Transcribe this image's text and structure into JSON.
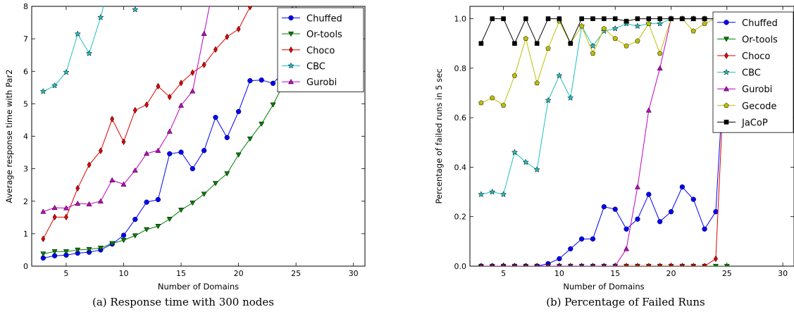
{
  "chart_data": [
    {
      "type": "line",
      "caption": "(a) Response time with 300 nodes",
      "xlabel": "Number of Domains",
      "ylabel": "Average response time with Par2",
      "xlim": [
        2,
        31
      ],
      "ylim": [
        0,
        8
      ],
      "xticks": [
        5,
        10,
        15,
        20,
        25,
        30
      ],
      "yticks": [
        0,
        1,
        2,
        3,
        4,
        5,
        6,
        7,
        8
      ],
      "grid": false,
      "legend": "top-right",
      "series": [
        {
          "name": "Chuffed",
          "color": "#0000ff",
          "marker": "circle",
          "x": [
            3,
            4,
            5,
            6,
            7,
            8,
            9,
            10,
            11,
            12,
            13,
            14,
            15,
            16,
            17,
            18,
            19,
            20,
            21,
            22,
            23,
            24,
            25
          ],
          "y": [
            0.25,
            0.32,
            0.34,
            0.4,
            0.43,
            0.5,
            0.68,
            0.95,
            1.44,
            1.97,
            2.05,
            3.46,
            3.51,
            3.0,
            3.56,
            4.58,
            3.96,
            4.76,
            5.71,
            5.73,
            5.63,
            6.0,
            9.0
          ]
        },
        {
          "name": "Or-tools",
          "color": "#007f00",
          "marker": "triangle-down",
          "x": [
            3,
            4,
            5,
            6,
            7,
            8,
            9,
            10,
            11,
            12,
            13,
            14,
            15,
            16,
            17,
            18,
            19,
            20,
            21,
            22,
            23,
            24,
            25
          ],
          "y": [
            0.38,
            0.45,
            0.45,
            0.5,
            0.52,
            0.56,
            0.7,
            0.8,
            0.94,
            1.13,
            1.23,
            1.45,
            1.73,
            1.95,
            2.22,
            2.55,
            2.85,
            3.43,
            3.92,
            4.38,
            4.97,
            5.66,
            9.0
          ]
        },
        {
          "name": "Choco",
          "color": "#e00000",
          "marker": "diamond",
          "x": [
            3,
            4,
            5,
            6,
            7,
            8,
            9,
            10,
            11,
            12,
            13,
            14,
            15,
            16,
            17,
            18,
            19,
            20,
            21,
            22
          ],
          "y": [
            0.84,
            1.51,
            1.51,
            2.4,
            3.12,
            3.55,
            4.53,
            3.83,
            4.8,
            4.97,
            5.54,
            5.21,
            5.64,
            5.96,
            6.2,
            6.67,
            7.06,
            7.3,
            7.98,
            8.9
          ]
        },
        {
          "name": "CBC",
          "color": "#1fbfbf",
          "marker": "star",
          "x": [
            3,
            4,
            5,
            6,
            7,
            8,
            8.6
          ],
          "y": [
            5.38,
            5.56,
            5.97,
            7.15,
            6.55,
            7.66,
            8.5
          ]
        },
        {
          "name": "Gurobi",
          "color": "#bf00bf",
          "marker": "triangle-up",
          "x": [
            3,
            4,
            5,
            6,
            7,
            8,
            9,
            10,
            11,
            12,
            13,
            14,
            15,
            16,
            17,
            17.8
          ],
          "y": [
            1.68,
            1.8,
            1.79,
            1.93,
            1.91,
            2.0,
            2.65,
            2.52,
            2.95,
            3.47,
            3.56,
            4.15,
            4.95,
            5.39,
            7.16,
            8.6
          ]
        }
      ],
      "stray_points": [
        {
          "series": "CBC",
          "x": 11,
          "y": 7.9
        }
      ]
    },
    {
      "type": "line",
      "caption": "(b) Percentage of Failed Runs",
      "xlabel": "Number of Domains",
      "ylabel": "Percentage of failed runs in 5 sec",
      "xlim": [
        2,
        31
      ],
      "ylim": [
        0,
        1.05
      ],
      "xticks": [
        5,
        10,
        15,
        20,
        25,
        30
      ],
      "yticks": [
        "0.0",
        "0.2",
        "0.4",
        "0.6",
        "0.8",
        "1.0"
      ],
      "grid": false,
      "legend": "top-right",
      "series": [
        {
          "name": "Chuffed",
          "color": "#0000ff",
          "marker": "circle",
          "x": [
            3,
            4,
            5,
            6,
            7,
            8,
            9,
            10,
            11,
            12,
            13,
            14,
            15,
            16,
            17,
            18,
            19,
            20,
            21,
            22,
            23,
            24,
            25
          ],
          "y": [
            0,
            0,
            0,
            0,
            0,
            0,
            0.01,
            0.03,
            0.07,
            0.11,
            0.11,
            0.24,
            0.23,
            0.15,
            0.19,
            0.29,
            0.18,
            0.22,
            0.32,
            0.27,
            0.15,
            0.22,
            1.0
          ]
        },
        {
          "name": "Or-tools",
          "color": "#007f00",
          "marker": "triangle-down",
          "x": [
            3,
            4,
            5,
            6,
            7,
            8,
            9,
            10,
            11,
            12,
            13,
            14,
            15,
            16,
            17,
            18,
            19,
            20,
            21,
            22,
            23,
            24,
            25
          ],
          "y": [
            0,
            0,
            0,
            0,
            0,
            0,
            0,
            0,
            0,
            0,
            0,
            0,
            0,
            0,
            0,
            0,
            0,
            0,
            0,
            0,
            0,
            0,
            0
          ]
        },
        {
          "name": "Choco",
          "color": "#e00000",
          "marker": "diamond",
          "x": [
            3,
            4,
            5,
            6,
            7,
            8,
            9,
            10,
            11,
            12,
            13,
            14,
            15,
            16,
            17,
            18,
            19,
            20,
            21,
            22,
            23,
            24,
            25
          ],
          "y": [
            0,
            0,
            0,
            0,
            0,
            0,
            0,
            0,
            0,
            0,
            0,
            0,
            0,
            0,
            0,
            0,
            0,
            0,
            0,
            0,
            0,
            0.03,
            1.0
          ]
        },
        {
          "name": "CBC",
          "color": "#1fbfbf",
          "marker": "star",
          "x": [
            3,
            4,
            5,
            6,
            7,
            8,
            9,
            10,
            11,
            12,
            13,
            14,
            15,
            16,
            17,
            18,
            19,
            20,
            21,
            22,
            23,
            24,
            25
          ],
          "y": [
            0.29,
            0.3,
            0.29,
            0.46,
            0.42,
            0.39,
            0.67,
            0.77,
            0.68,
            0.97,
            0.89,
            0.95,
            0.96,
            0.98,
            0.97,
            0.98,
            0.98,
            1.0,
            1.0,
            1.0,
            1.0,
            1.0,
            1.0
          ]
        },
        {
          "name": "Gurobi",
          "color": "#bf00bf",
          "marker": "triangle-up",
          "x": [
            3,
            4,
            5,
            6,
            7,
            8,
            9,
            10,
            11,
            12,
            13,
            14,
            15,
            16,
            17,
            18,
            19,
            20,
            21,
            22,
            23,
            24,
            25
          ],
          "y": [
            0,
            0,
            0,
            0,
            0,
            0,
            0,
            0,
            0,
            0,
            0,
            0,
            0,
            0.07,
            0.32,
            0.63,
            0.8,
            1.0,
            1.0,
            1.0,
            1.0,
            1.0,
            1.0
          ]
        },
        {
          "name": "Gecode",
          "color": "#bfbf00",
          "marker": "pentagon",
          "x": [
            3,
            4,
            5,
            6,
            7,
            8,
            9,
            10,
            11,
            12,
            13,
            14,
            15,
            16,
            17,
            18,
            19,
            20,
            21,
            22,
            23,
            24
          ],
          "y": [
            0.66,
            0.68,
            0.65,
            0.77,
            0.92,
            0.74,
            0.88,
            0.99,
            0.9,
            0.97,
            0.86,
            0.96,
            0.92,
            0.89,
            0.91,
            0.98,
            0.86,
            1.0,
            1.0,
            0.95,
            0.98,
            1.0
          ]
        },
        {
          "name": "JaCoP",
          "color": "#000000",
          "marker": "square",
          "x": [
            3,
            4,
            5,
            6,
            7,
            8,
            9,
            10,
            11,
            12,
            13,
            14,
            15,
            16,
            17,
            18,
            19,
            20,
            21,
            22,
            23,
            24
          ],
          "y": [
            0.9,
            1.0,
            1.0,
            0.9,
            1.0,
            0.9,
            1.0,
            1.0,
            0.9,
            1.0,
            1.0,
            1.0,
            1.0,
            0.99,
            1.0,
            1.0,
            1.0,
            1.0,
            1.0,
            1.0,
            1.0,
            1.0
          ]
        }
      ]
    }
  ]
}
